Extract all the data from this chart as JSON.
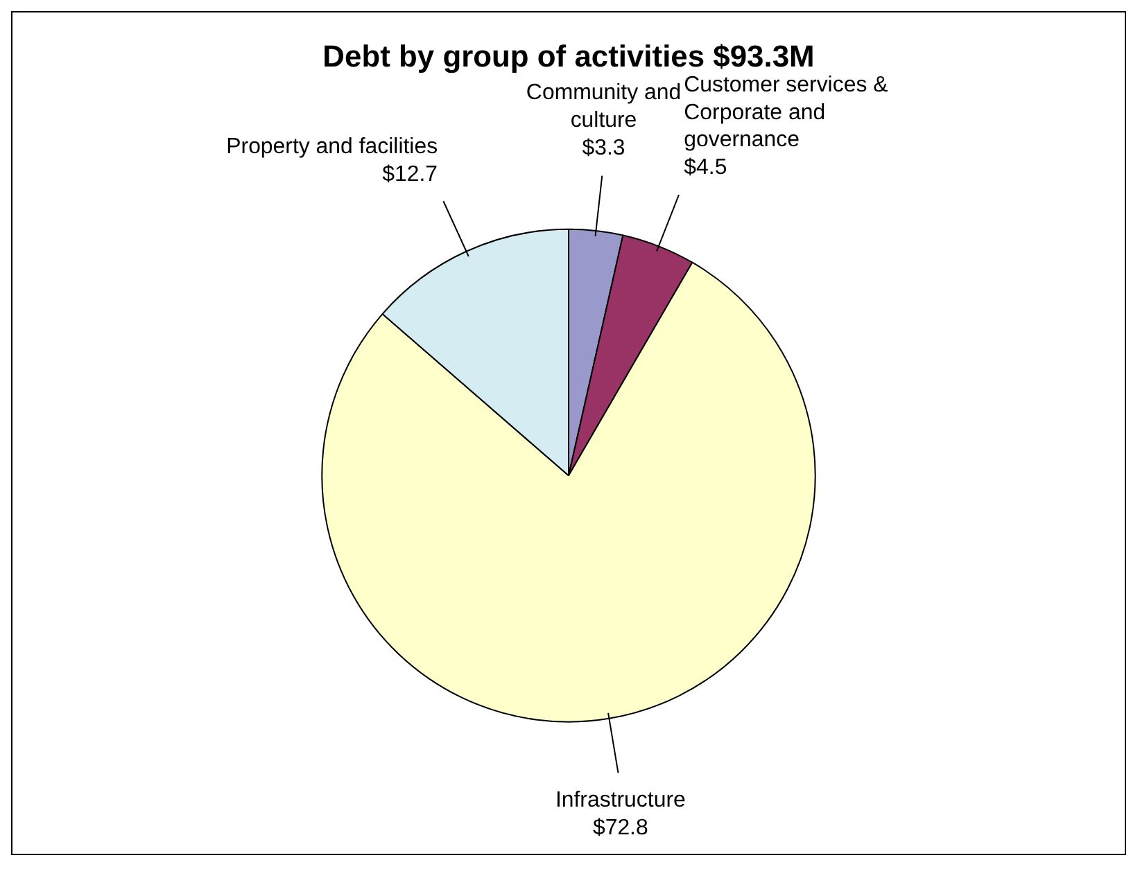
{
  "chart_data": {
    "type": "pie",
    "title": "Debt by group of activities $93.3M",
    "categories": [
      "Community and culture",
      "Customer services & Corporate and governance",
      "Infrastructure",
      "Property and facilities"
    ],
    "values": [
      3.3,
      4.5,
      72.8,
      12.7
    ],
    "value_labels": [
      "$3.3",
      "$4.5",
      "$72.8",
      "$12.7"
    ],
    "colors": [
      "#9999cc",
      "#993366",
      "#ffffcc",
      "#d4ecf2"
    ],
    "legend": false
  }
}
